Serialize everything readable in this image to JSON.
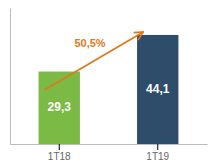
{
  "chart_data": {
    "type": "bar",
    "categories": [
      "1T18",
      "1T19"
    ],
    "values": [
      29.3,
      44.1
    ],
    "value_labels": [
      "29,3",
      "44,1"
    ],
    "data_labels": true,
    "colors": [
      "#7aba45",
      "#2e4d6b"
    ],
    "ylim": [
      0,
      55
    ],
    "tick_labels": "x",
    "annotations": [
      {
        "text": "50,5%",
        "color": "#e07820"
      }
    ]
  }
}
